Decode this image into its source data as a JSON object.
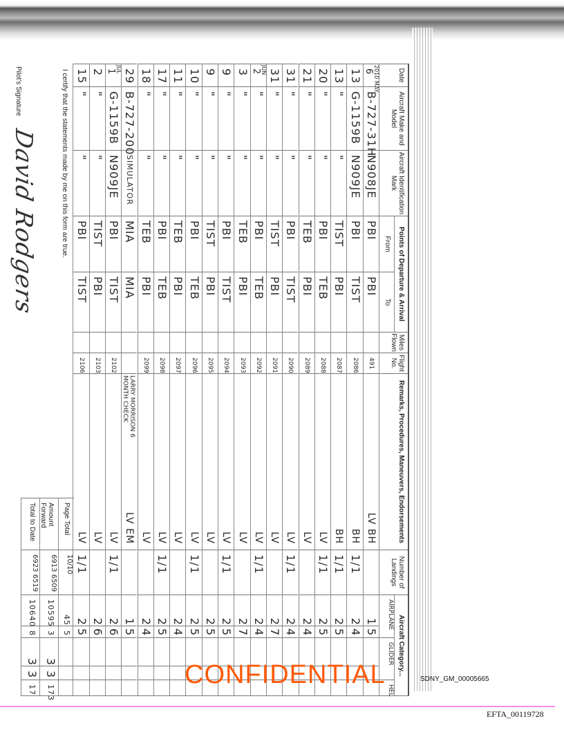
{
  "header": {
    "date": "Date",
    "make_model": "Aircraft Make and Model",
    "ident": "Aircraft Identification Mark",
    "points": "Points of Departure & Arrival",
    "from": "From",
    "to": "To",
    "miles": "Miles Flown",
    "flight_no": "Flight No.",
    "remarks": "Remarks, Procedures, Maneuvers, Endorsements",
    "landings": "Number of Landings",
    "category": "Aircraft Category...",
    "airplane": "AIRPLANE",
    "glider": "GLIDER",
    "heli": "HEL"
  },
  "rows": [
    {
      "year": "2010",
      "month": "MAY",
      "day": "6",
      "make": "B-727-31H",
      "ident": "N908JE",
      "from": "PBI",
      "to": "PBI",
      "flight": "491",
      "remarks": "",
      "crew": "LV BH",
      "landings": "",
      "airplane": "1",
      "airplane_dec": "5"
    },
    {
      "day": "13",
      "make": "G-1159B",
      "ident": "N909JE",
      "from": "PBI",
      "to": "TIST",
      "flight": "2086",
      "remarks": "",
      "crew": "BH",
      "landings": "1/1",
      "airplane": "2",
      "airplane_dec": "4"
    },
    {
      "day": "13",
      "make": "\"",
      "ident": "\"",
      "from": "TIST",
      "to": "PBI",
      "flight": "2087",
      "remarks": "",
      "crew": "BH",
      "landings": "1/1",
      "airplane": "2",
      "airplane_dec": "5"
    },
    {
      "day": "20",
      "make": "\"",
      "ident": "\"",
      "from": "PBI",
      "to": "TEB",
      "flight": "2088",
      "remarks": "",
      "crew": "LV",
      "landings": "1/1",
      "airplane": "2",
      "airplane_dec": "5"
    },
    {
      "day": "21",
      "make": "\"",
      "ident": "\"",
      "from": "TEB",
      "to": "PBI",
      "flight": "2089",
      "remarks": "",
      "crew": "LV",
      "landings": "",
      "airplane": "2",
      "airplane_dec": "4"
    },
    {
      "day": "31",
      "make": "\"",
      "ident": "\"",
      "from": "PBI",
      "to": "TIST",
      "flight": "2090",
      "remarks": "",
      "crew": "LV",
      "landings": "1/1",
      "airplane": "2",
      "airplane_dec": "4"
    },
    {
      "day": "31",
      "make": "\"",
      "ident": "\"",
      "from": "TIST",
      "to": "PBI",
      "flight": "2091",
      "remarks": "",
      "crew": "LV",
      "landings": "",
      "airplane": "2",
      "airplane_dec": "7"
    },
    {
      "month": "JUN",
      "day": "2",
      "make": "\"",
      "ident": "\"",
      "from": "PBI",
      "to": "TEB",
      "flight": "2092",
      "remarks": "",
      "crew": "LV",
      "landings": "1/1",
      "airplane": "2",
      "airplane_dec": "4"
    },
    {
      "day": "3",
      "make": "\"",
      "ident": "\"",
      "from": "TEB",
      "to": "PBI",
      "flight": "2093",
      "remarks": "",
      "crew": "LV",
      "landings": "",
      "airplane": "2",
      "airplane_dec": "7"
    },
    {
      "day": "9",
      "make": "\"",
      "ident": "\"",
      "from": "PBI",
      "to": "TIST",
      "flight": "2094",
      "remarks": "",
      "crew": "LV",
      "landings": "1/1",
      "airplane": "2",
      "airplane_dec": "5"
    },
    {
      "day": "9",
      "make": "\"",
      "ident": "\"",
      "from": "TIST",
      "to": "PBI",
      "flight": "2095",
      "remarks": "",
      "crew": "LV",
      "landings": "",
      "airplane": "2",
      "airplane_dec": "5"
    },
    {
      "day": "10",
      "make": "\"",
      "ident": "\"",
      "from": "PBI",
      "to": "TEB",
      "flight": "2096",
      "remarks": "",
      "crew": "LV",
      "landings": "1/1",
      "airplane": "2",
      "airplane_dec": "5"
    },
    {
      "day": "11",
      "make": "\"",
      "ident": "\"",
      "from": "TEB",
      "to": "PBI",
      "flight": "2097",
      "remarks": "",
      "crew": "LV",
      "landings": "",
      "airplane": "2",
      "airplane_dec": "4"
    },
    {
      "day": "17",
      "make": "\"",
      "ident": "\"",
      "from": "PBI",
      "to": "TEB",
      "flight": "2098",
      "remarks": "",
      "crew": "LV",
      "landings": "1/1",
      "airplane": "2",
      "airplane_dec": "5"
    },
    {
      "day": "18",
      "make": "\"",
      "ident": "\"",
      "from": "TEB",
      "to": "PBI",
      "flight": "2099",
      "remarks": "",
      "crew": "LV",
      "landings": "",
      "airplane": "2",
      "airplane_dec": "4"
    },
    {
      "day": "29",
      "make": "B-727-200",
      "ident": "SIMULATOR",
      "from": "MIA",
      "to": "MIA",
      "flight": "",
      "remarks": "LARRY MORRISON 6 MONTH CHECK",
      "crew": "LV EM",
      "landings": "",
      "airplane": "1",
      "airplane_dec": "5"
    },
    {
      "month": "JUL",
      "day": "1",
      "make": "G-1159B",
      "ident": "N909JE",
      "from": "PBI",
      "to": "TIST",
      "flight": "2102",
      "remarks": "",
      "crew": "LV",
      "landings": "1/1",
      "airplane": "2",
      "airplane_dec": "6"
    },
    {
      "day": "2",
      "make": "\"",
      "ident": "\"",
      "from": "TIST",
      "to": "PBI",
      "flight": "2103",
      "remarks": "",
      "crew": "LV",
      "landings": "",
      "airplane": "2",
      "airplane_dec": "6"
    },
    {
      "day": "15",
      "make": "\"",
      "ident": "\"",
      "from": "PBI",
      "to": "TIST",
      "flight": "2106",
      "remarks": "",
      "crew": "LV",
      "landings": "1/1",
      "airplane": "2",
      "airplane_dec": "5"
    }
  ],
  "totals": [
    {
      "label": "Page Total",
      "landings": "10/10",
      "airplane": "45",
      "airplane_dec": "5",
      "glider": "",
      "glider_dec": "",
      "heli": ""
    },
    {
      "label": "Amount Forward",
      "landings": "6913 6509",
      "airplane": "10595",
      "airplane_dec": "3",
      "glider": "3",
      "glider_dec": "3",
      "heli": "173"
    },
    {
      "label": "Total to Date",
      "landings": "6923 6519",
      "airplane": "10640",
      "airplane_dec": "8",
      "glider": "3",
      "glider_dec": "3",
      "heli": "17"
    }
  ],
  "certify": "I certify that the statements made by me on this form are true.",
  "signature_label": "Pilot's Signature",
  "signature": "David Rodgers",
  "bates_sdny": "SDNY_GM_00005665",
  "confidential": "CONFIDENTIAL",
  "bates_efta": "EFTA_00119728",
  "colors": {
    "confidential": "#ff5a0a",
    "rule_line": "#f48af4"
  }
}
